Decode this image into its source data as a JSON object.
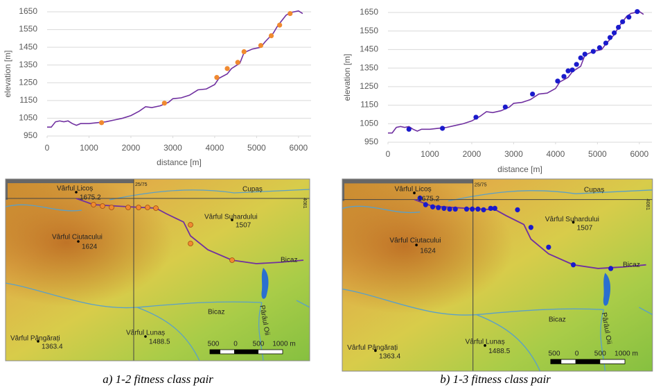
{
  "chart_data": [
    {
      "type": "line",
      "xlabel": "distance [m]",
      "ylabel": "elevation [m]",
      "xlim": [
        0,
        6300
      ],
      "ylim": [
        950,
        1650
      ],
      "xticks": [
        0,
        1000,
        2000,
        3000,
        4000,
        5000,
        6000
      ],
      "yticks": [
        950,
        1050,
        1150,
        1250,
        1350,
        1450,
        1550,
        1650
      ],
      "grid": true,
      "series": [
        {
          "type": "line",
          "color": "#7030a0",
          "x": [
            0,
            100,
            200,
            300,
            400,
            500,
            600,
            700,
            800,
            900,
            1000,
            1200,
            1400,
            1600,
            1800,
            2000,
            2200,
            2350,
            2500,
            2700,
            2900,
            3000,
            3200,
            3400,
            3600,
            3800,
            4000,
            4100,
            4300,
            4400,
            4600,
            4700,
            4900,
            5100,
            5200,
            5400,
            5500,
            5700,
            5800,
            6000,
            6100
          ],
          "values": [
            1000,
            1000,
            1030,
            1035,
            1030,
            1035,
            1020,
            1010,
            1020,
            1020,
            1020,
            1025,
            1030,
            1040,
            1050,
            1065,
            1090,
            1115,
            1110,
            1120,
            1140,
            1160,
            1165,
            1180,
            1210,
            1215,
            1240,
            1275,
            1300,
            1330,
            1360,
            1420,
            1440,
            1450,
            1480,
            1530,
            1570,
            1630,
            1645,
            1655,
            1640
          ]
        },
        {
          "type": "scatter",
          "color": "#f08a30",
          "x": [
            1300,
            2800,
            4050,
            4300,
            4550,
            4700,
            5100,
            5350,
            5550,
            5800
          ],
          "values": [
            1025,
            1135,
            1280,
            1330,
            1365,
            1425,
            1460,
            1515,
            1575,
            1640
          ]
        }
      ]
    },
    {
      "type": "line",
      "xlabel": "distance [m]",
      "ylabel": "elevation [m]",
      "xlim": [
        0,
        6300
      ],
      "ylim": [
        950,
        1650
      ],
      "xticks": [
        0,
        1000,
        2000,
        3000,
        4000,
        5000,
        6000
      ],
      "yticks": [
        950,
        1050,
        1150,
        1250,
        1350,
        1450,
        1550,
        1650
      ],
      "grid": true,
      "series": [
        {
          "type": "line",
          "color": "#7030a0",
          "x": [
            0,
            100,
            200,
            300,
            400,
            500,
            600,
            700,
            800,
            900,
            1000,
            1200,
            1400,
            1600,
            1800,
            2000,
            2200,
            2350,
            2500,
            2700,
            2900,
            3000,
            3200,
            3400,
            3600,
            3800,
            4000,
            4100,
            4300,
            4400,
            4600,
            4700,
            4900,
            5100,
            5200,
            5400,
            5500,
            5700,
            5800,
            6000,
            6100
          ],
          "values": [
            1000,
            1000,
            1030,
            1035,
            1030,
            1035,
            1020,
            1010,
            1020,
            1020,
            1020,
            1025,
            1030,
            1040,
            1050,
            1065,
            1090,
            1115,
            1110,
            1120,
            1140,
            1160,
            1165,
            1180,
            1210,
            1215,
            1240,
            1275,
            1300,
            1330,
            1360,
            1420,
            1440,
            1450,
            1480,
            1530,
            1570,
            1630,
            1645,
            1655,
            1640
          ]
        },
        {
          "type": "scatter",
          "color": "#1a1acc",
          "x": [
            500,
            1300,
            2100,
            2800,
            3450,
            4050,
            4200,
            4300,
            4400,
            4500,
            4600,
            4700,
            4900,
            5050,
            5200,
            5300,
            5400,
            5500,
            5600,
            5750,
            5950
          ],
          "values": [
            1020,
            1025,
            1085,
            1140,
            1210,
            1280,
            1305,
            1335,
            1340,
            1370,
            1405,
            1425,
            1440,
            1460,
            1485,
            1515,
            1540,
            1570,
            1600,
            1625,
            1655
          ]
        }
      ]
    }
  ],
  "map": {
    "peaks": [
      {
        "name": "Vârful Licoș",
        "elevation": "1675.2"
      },
      {
        "name": "Vârful Suhardului",
        "elevation": "1507"
      },
      {
        "name": "Vârful Ciutacului",
        "elevation": "1624"
      },
      {
        "name": "Vârful Pângărați",
        "elevation": "1363.4"
      },
      {
        "name": "Vârful Lunaș",
        "elevation": "1488.5"
      }
    ],
    "rivers": [
      "Cupaș",
      "Bicaz",
      "Bicaz",
      "Pârâul Oii"
    ],
    "grid_labels": [
      "25/75",
      "4081"
    ],
    "scale": [
      "500",
      "0",
      "500",
      "1000 m"
    ]
  },
  "captions": [
    "a) 1-2 fitness class pair",
    "b) 1-3 fitness class pair"
  ]
}
